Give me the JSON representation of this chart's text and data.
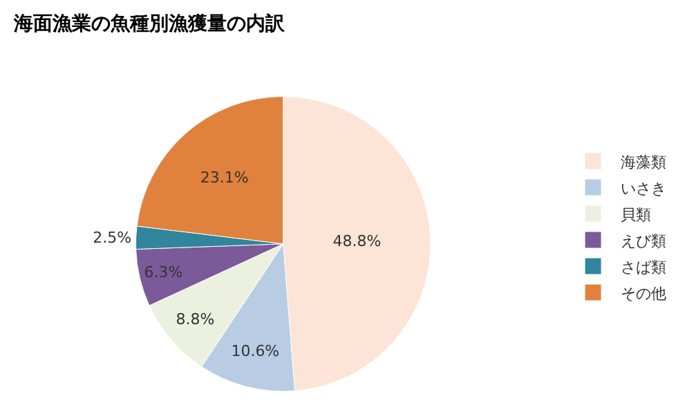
{
  "chart_data": {
    "type": "pie",
    "title": "海面漁業の魚種別漁獲量の内訳",
    "categories": [
      "海藻類",
      "いさき",
      "貝類",
      "えび類",
      "さば類",
      "その他"
    ],
    "values": [
      48.8,
      10.6,
      8.8,
      6.3,
      2.5,
      23.1
    ],
    "value_labels": [
      "48.8%",
      "10.6%",
      "8.8%",
      "6.3%",
      "2.5%",
      "23.1%"
    ],
    "colors": [
      "#fce4d6",
      "#b8cce4",
      "#ebf1de",
      "#7b5a9a",
      "#31859c",
      "#e0823d"
    ],
    "legend": "right"
  }
}
